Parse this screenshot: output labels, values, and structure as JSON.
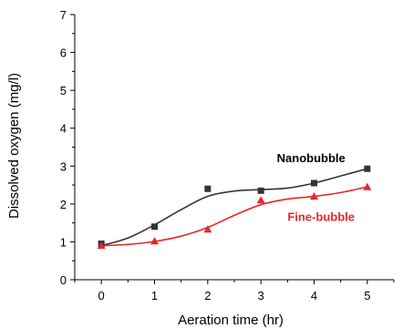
{
  "chart_data": {
    "type": "scatter",
    "xlabel": "Aeration time (hr)",
    "ylabel": "Dissolved oxygen (mg/l)",
    "xlim": [
      -0.5,
      5.5
    ],
    "ylim": [
      0,
      7
    ],
    "x_ticks": [
      0,
      1,
      2,
      3,
      4,
      5
    ],
    "y_ticks": [
      0,
      1,
      2,
      3,
      4,
      5,
      6,
      7
    ],
    "grid": false,
    "legend": "none",
    "series": [
      {
        "name": "Nanobubble",
        "color": "#333333",
        "marker": "square",
        "x": [
          0,
          1,
          2,
          3,
          4,
          5
        ],
        "y": [
          0.95,
          1.4,
          2.4,
          2.35,
          2.55,
          2.93
        ],
        "fit": [
          [
            0,
            0.9
          ],
          [
            0.5,
            1.1
          ],
          [
            1,
            1.45
          ],
          [
            1.5,
            1.85
          ],
          [
            2,
            2.2
          ],
          [
            2.5,
            2.34
          ],
          [
            3,
            2.38
          ],
          [
            3.5,
            2.42
          ],
          [
            4,
            2.55
          ],
          [
            4.5,
            2.74
          ],
          [
            5,
            2.93
          ]
        ]
      },
      {
        "name": "Fine-bubble",
        "color": "#e8262a",
        "marker": "triangle",
        "x": [
          0,
          1,
          2,
          3,
          4,
          5
        ],
        "y": [
          0.9,
          1.02,
          1.33,
          2.1,
          2.2,
          2.45
        ],
        "fit": [
          [
            0,
            0.9
          ],
          [
            0.5,
            0.93
          ],
          [
            1,
            1.01
          ],
          [
            1.5,
            1.15
          ],
          [
            2,
            1.38
          ],
          [
            2.5,
            1.7
          ],
          [
            3,
            1.98
          ],
          [
            3.5,
            2.13
          ],
          [
            4,
            2.2
          ],
          [
            4.5,
            2.3
          ],
          [
            5,
            2.45
          ]
        ]
      }
    ],
    "annotations": [
      {
        "text": "Nanobubble",
        "x": 3.3,
        "y": 3.1,
        "color": "#000000"
      },
      {
        "text": "Fine-bubble",
        "x": 3.5,
        "y": 1.55,
        "color": "#e8262a"
      }
    ]
  }
}
